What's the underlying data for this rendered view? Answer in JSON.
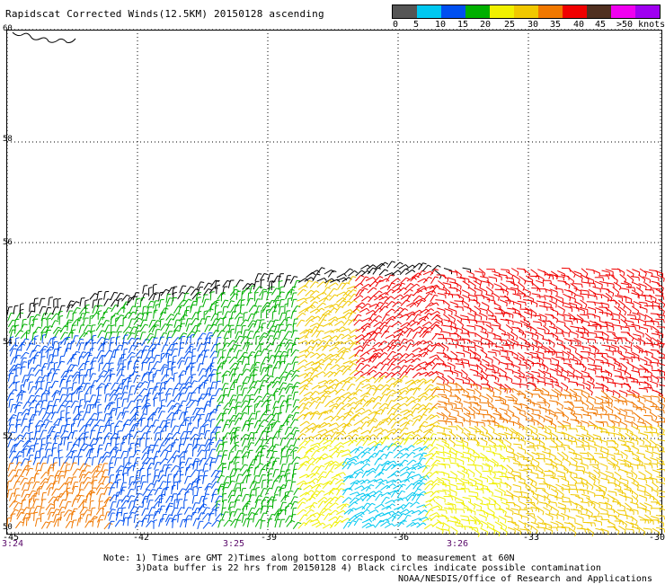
{
  "title": "Rapidscat Corrected Winds(12.5KM) 20150128 ascending",
  "legend": {
    "colors": [
      "#555555",
      "#00c8f0",
      "#0050f0",
      "#00b000",
      "#f0f000",
      "#f0c800",
      "#f07800",
      "#f00000",
      "#503020",
      "#f000f0",
      "#a000f0"
    ],
    "labels": [
      "0",
      "5",
      "10",
      "15",
      "20",
      "25",
      "30",
      "35",
      "40",
      "45",
      ">50 knots"
    ]
  },
  "axes": {
    "lat_labels": [
      "60",
      "58",
      "56",
      "54",
      "52",
      "50"
    ],
    "lon_labels": [
      "-45",
      "-42",
      "-39",
      "-36",
      "-33",
      "-30"
    ],
    "time_labels": [
      "3:24",
      "3:25",
      "3:26"
    ]
  },
  "notes": {
    "line1": "Note: 1) Times are GMT 2)Times along bottom correspond to measurement at 60N",
    "line2": "      3)Data buffer is 22 hrs from 20150128 4) Black circles indicate possible contamination"
  },
  "credit": "NOAA/NESDIS/Office of Research and Applications"
}
